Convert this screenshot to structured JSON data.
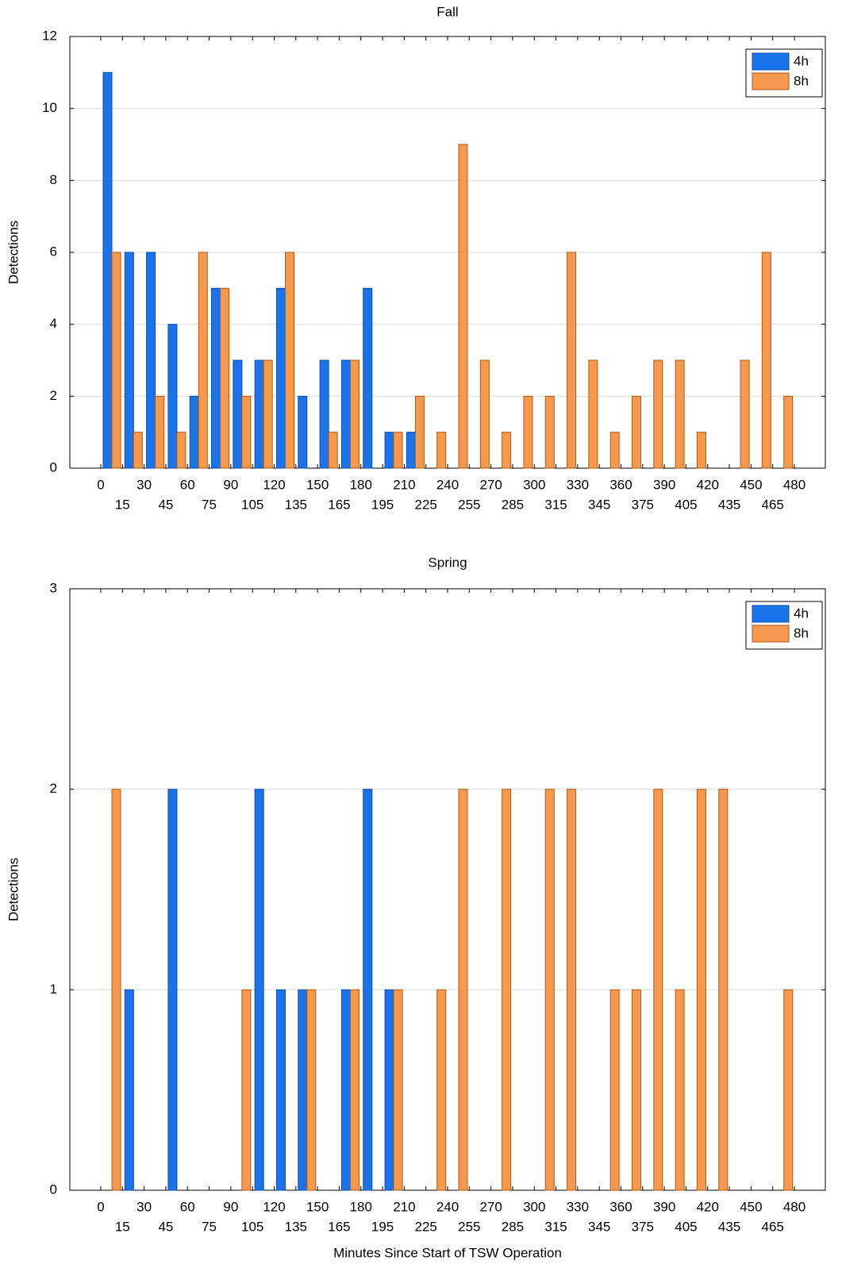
{
  "chart_data": [
    {
      "type": "bar",
      "title": "Fall",
      "ylabel": "Detections",
      "categories": [
        0,
        15,
        30,
        45,
        60,
        75,
        90,
        105,
        120,
        135,
        150,
        165,
        180,
        195,
        210,
        225,
        240,
        255,
        270,
        285,
        300,
        315,
        330,
        345,
        360,
        375,
        390,
        405,
        420,
        435,
        450,
        465,
        480
      ],
      "series": [
        {
          "name": "4h",
          "color": "#1a73e8",
          "values": [
            11,
            6,
            6,
            4,
            2,
            5,
            3,
            3,
            5,
            2,
            3,
            3,
            5,
            1,
            1,
            0,
            0,
            0,
            0,
            0,
            0,
            0,
            0,
            0,
            0,
            0,
            0,
            0,
            0,
            0,
            0,
            0,
            0
          ]
        },
        {
          "name": "8h",
          "color": "#f5994f",
          "values": [
            6,
            1,
            2,
            1,
            6,
            5,
            2,
            3,
            6,
            0,
            1,
            3,
            0,
            1,
            2,
            1,
            9,
            3,
            1,
            2,
            2,
            6,
            3,
            1,
            2,
            3,
            3,
            1,
            0,
            3,
            6,
            2,
            0
          ]
        }
      ],
      "ylim": [
        0,
        12
      ],
      "yticks": [
        0,
        2,
        4,
        6,
        8,
        10,
        12
      ],
      "grid": true,
      "legend": "top-right"
    },
    {
      "type": "bar",
      "title": "Spring",
      "ylabel": "Detections",
      "xlabel": "Minutes Since Start of TSW Operation",
      "categories": [
        0,
        15,
        30,
        45,
        60,
        75,
        90,
        105,
        120,
        135,
        150,
        165,
        180,
        195,
        210,
        225,
        240,
        255,
        270,
        285,
        300,
        315,
        330,
        345,
        360,
        375,
        390,
        405,
        420,
        435,
        450,
        465,
        480
      ],
      "series": [
        {
          "name": "4h",
          "color": "#1a73e8",
          "values": [
            0,
            1,
            0,
            2,
            0,
            0,
            0,
            2,
            1,
            1,
            0,
            1,
            2,
            1,
            0,
            0,
            0,
            0,
            0,
            0,
            0,
            0,
            0,
            0,
            0,
            0,
            0,
            0,
            0,
            0,
            0,
            0,
            0
          ]
        },
        {
          "name": "8h",
          "color": "#f5994f",
          "values": [
            2,
            0,
            0,
            0,
            0,
            0,
            1,
            0,
            0,
            1,
            0,
            1,
            0,
            1,
            0,
            1,
            2,
            0,
            2,
            0,
            2,
            2,
            0,
            1,
            1,
            2,
            1,
            2,
            2,
            0,
            0,
            1,
            0
          ]
        }
      ],
      "ylim": [
        0,
        3
      ],
      "yticks": [
        0,
        1,
        2,
        3
      ],
      "grid": true,
      "legend": "top-right"
    }
  ]
}
